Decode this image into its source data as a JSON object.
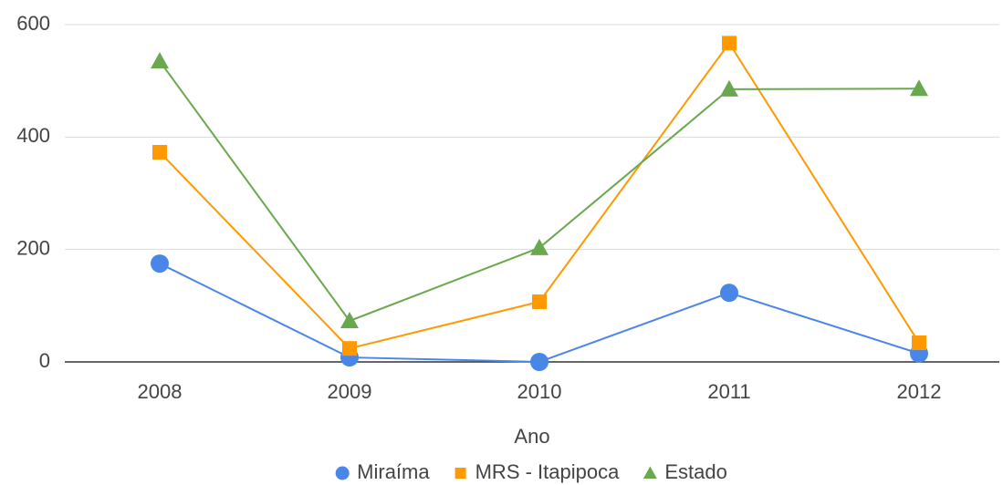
{
  "chart_data": {
    "type": "line",
    "x_label": "Ano",
    "categories": [
      "2008",
      "2009",
      "2010",
      "2011",
      "2012"
    ],
    "series": [
      {
        "name": "Miraíma",
        "color": "#4a86e8",
        "marker": "circle",
        "values": [
          175,
          8,
          0,
          123,
          15
        ]
      },
      {
        "name": "MRS - Itapipoca",
        "color": "#ff9900",
        "marker": "square",
        "values": [
          373,
          24,
          107,
          567,
          34
        ]
      },
      {
        "name": "Estado",
        "color": "#6aa84f",
        "marker": "triangle",
        "values": [
          535,
          73,
          203,
          485,
          486
        ]
      }
    ],
    "ylim": [
      0,
      600
    ],
    "yticks": [
      0,
      200,
      400,
      600
    ],
    "grid": true,
    "legend": "bottom"
  }
}
